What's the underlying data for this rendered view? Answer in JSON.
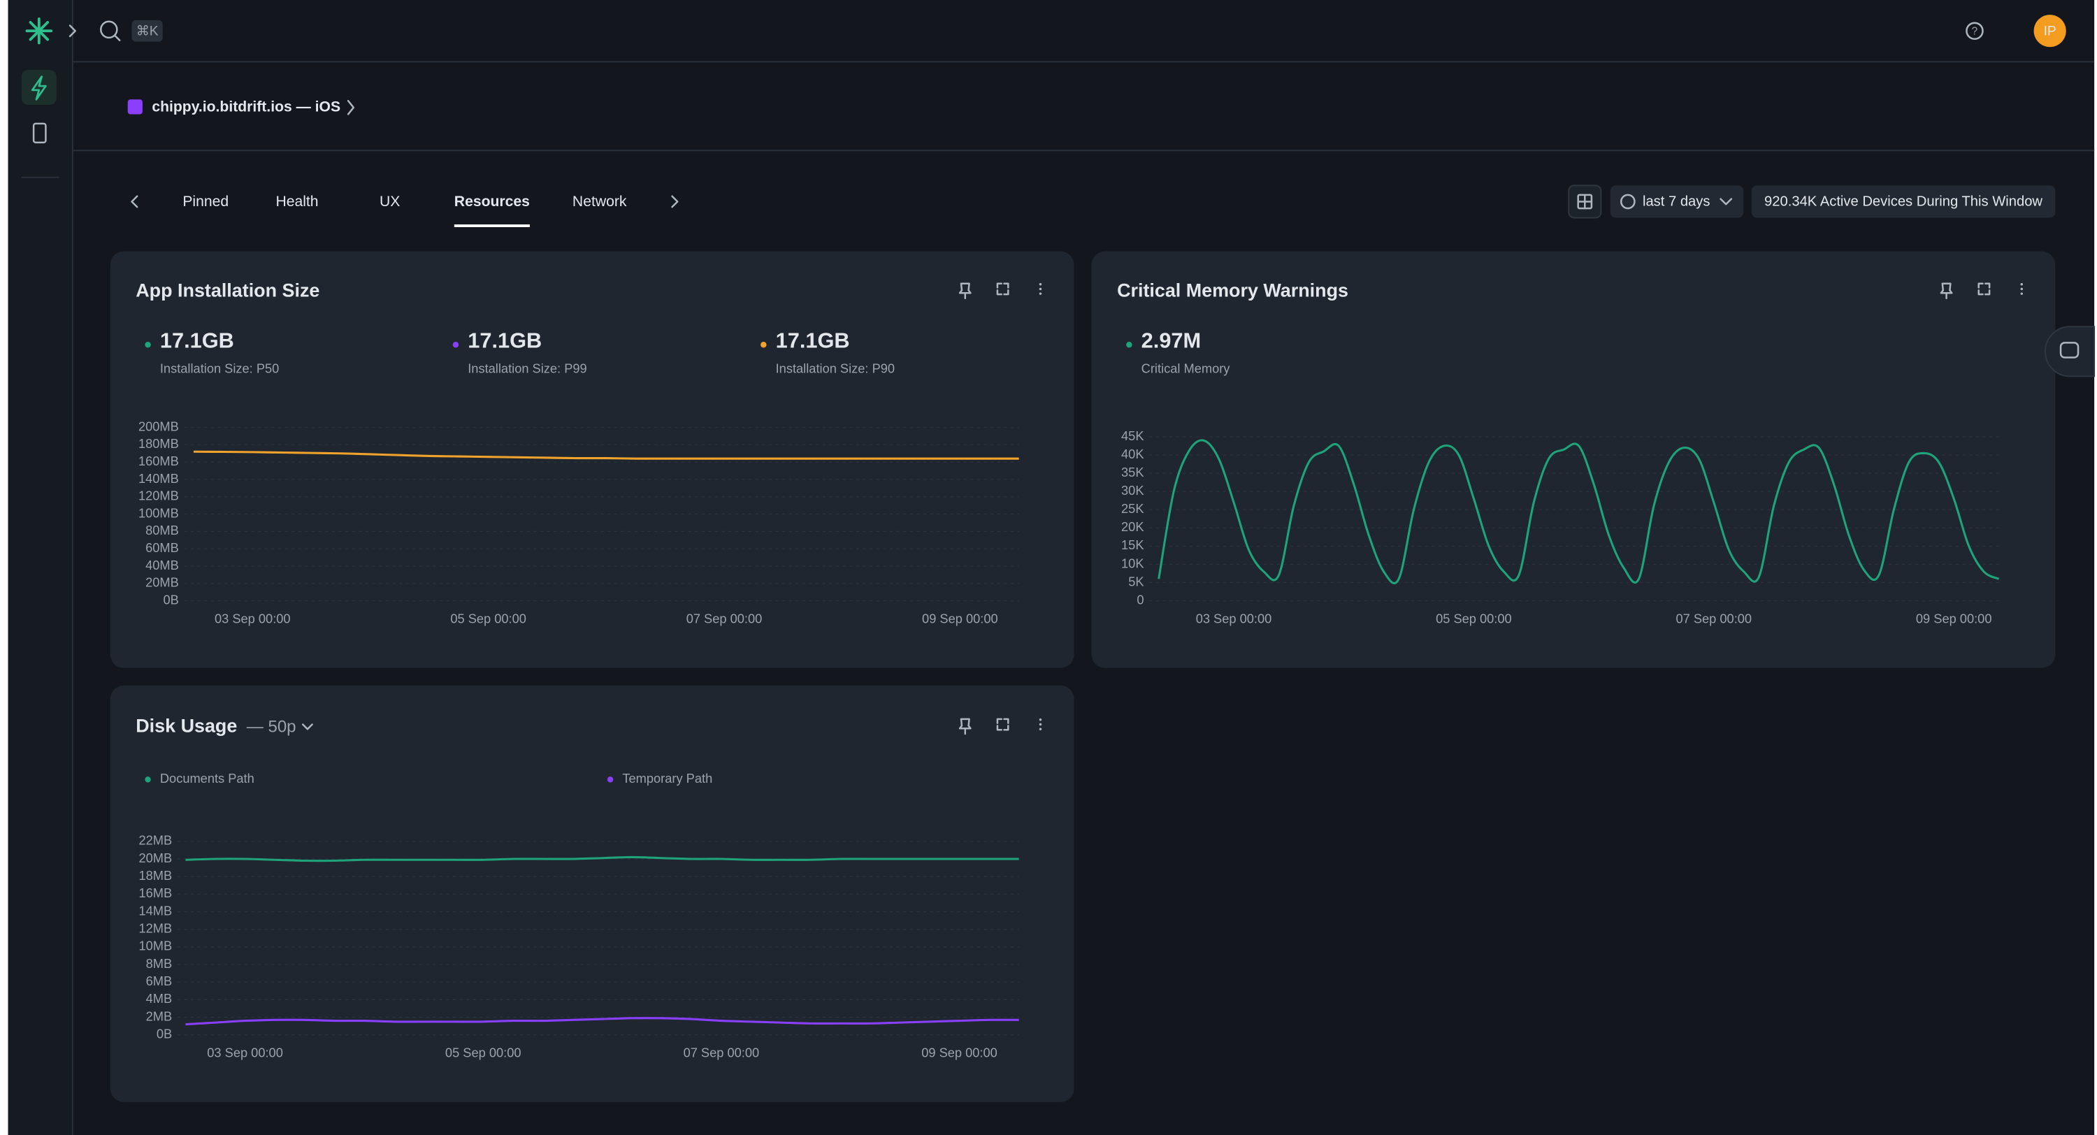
{
  "header": {
    "search_shortcut": "⌘K",
    "avatar": "IP"
  },
  "breadcrumb": "chippy.io.bitdrift.ios — iOS",
  "tabs": [
    "Pinned",
    "Health",
    "UX",
    "Resources",
    "Network"
  ],
  "active_tab": 3,
  "controls": {
    "time_range": "last 7 days",
    "active_devices": "920.34K Active Devices During This Window"
  },
  "chart_data": [
    {
      "type": "line",
      "title": "App Installation Size",
      "stats": [
        {
          "value": "17.1GB",
          "label": "Installation Size: P50",
          "color": "#1fa37a"
        },
        {
          "value": "17.1GB",
          "label": "Installation Size: P99",
          "color": "#8a3ffc"
        },
        {
          "value": "17.1GB",
          "label": "Installation Size: P90",
          "color": "#f0a32c"
        }
      ],
      "x": [
        "02 Sep 12:00",
        "02 Sep 18:00",
        "03 Sep 00:00",
        "03 Sep 06:00",
        "03 Sep 12:00",
        "03 Sep 18:00",
        "04 Sep 00:00",
        "04 Sep 06:00",
        "04 Sep 12:00",
        "04 Sep 18:00",
        "05 Sep 00:00",
        "05 Sep 06:00",
        "05 Sep 12:00",
        "05 Sep 18:00",
        "06 Sep 00:00",
        "06 Sep 06:00",
        "06 Sep 12:00",
        "06 Sep 18:00",
        "07 Sep 00:00",
        "07 Sep 06:00",
        "07 Sep 12:00",
        "07 Sep 18:00",
        "08 Sep 00:00",
        "08 Sep 06:00",
        "08 Sep 12:00",
        "08 Sep 18:00",
        "09 Sep 00:00",
        "09 Sep 06:00",
        "09 Sep 12:00"
      ],
      "xticks": [
        "03 Sep 00:00",
        "05 Sep 00:00",
        "07 Sep 00:00",
        "09 Sep 00:00"
      ],
      "series": [
        {
          "color": "#f0a32c",
          "values": [
            172,
            171.8,
            171.5,
            171,
            170.5,
            170,
            169,
            168,
            167,
            166.5,
            166,
            165.5,
            165,
            164.5,
            164.5,
            164,
            164,
            164,
            164,
            164,
            164,
            164,
            164,
            164,
            164,
            164,
            164,
            164,
            164
          ]
        }
      ],
      "ylim": [
        0,
        200
      ],
      "yticks": [
        {
          "value": 0,
          "label": "0B"
        },
        {
          "value": 20,
          "label": "20MB"
        },
        {
          "value": 40,
          "label": "40MB"
        },
        {
          "value": 60,
          "label": "60MB"
        },
        {
          "value": 80,
          "label": "80MB"
        },
        {
          "value": 100,
          "label": "100MB"
        },
        {
          "value": 120,
          "label": "120MB"
        },
        {
          "value": 140,
          "label": "140MB"
        },
        {
          "value": 160,
          "label": "160MB"
        },
        {
          "value": 180,
          "label": "180MB"
        },
        {
          "value": 200,
          "label": "200MB"
        }
      ],
      "grid": true
    },
    {
      "type": "line",
      "title": "Critical Memory Warnings",
      "stats": [
        {
          "value": "2.97M",
          "label": "Critical Memory",
          "color": "#1fa37a"
        }
      ],
      "x": [
        "02 Sep 09:00",
        "02 Sep 12:00",
        "02 Sep 15:00",
        "02 Sep 18:00",
        "02 Sep 21:00",
        "03 Sep 00:00",
        "03 Sep 03:00",
        "03 Sep 06:00",
        "03 Sep 09:00",
        "03 Sep 12:00",
        "03 Sep 15:00",
        "03 Sep 18:00",
        "03 Sep 21:00",
        "04 Sep 00:00",
        "04 Sep 03:00",
        "04 Sep 06:00",
        "04 Sep 09:00",
        "04 Sep 12:00",
        "04 Sep 15:00",
        "04 Sep 18:00",
        "04 Sep 21:00",
        "05 Sep 00:00",
        "05 Sep 03:00",
        "05 Sep 06:00",
        "05 Sep 09:00",
        "05 Sep 12:00",
        "05 Sep 15:00",
        "05 Sep 18:00",
        "05 Sep 21:00",
        "06 Sep 00:00",
        "06 Sep 03:00",
        "06 Sep 06:00",
        "06 Sep 09:00",
        "06 Sep 12:00",
        "06 Sep 15:00",
        "06 Sep 18:00",
        "06 Sep 21:00",
        "07 Sep 00:00",
        "07 Sep 03:00",
        "07 Sep 06:00",
        "07 Sep 09:00",
        "07 Sep 12:00",
        "07 Sep 15:00",
        "07 Sep 18:00",
        "07 Sep 21:00",
        "08 Sep 00:00",
        "08 Sep 03:00",
        "08 Sep 06:00",
        "08 Sep 09:00",
        "08 Sep 12:00",
        "08 Sep 15:00",
        "08 Sep 18:00",
        "08 Sep 21:00",
        "09 Sep 00:00",
        "09 Sep 03:00",
        "09 Sep 06:00",
        "09 Sep 09:00"
      ],
      "xticks": [
        "03 Sep 00:00",
        "05 Sep 00:00",
        "07 Sep 00:00",
        "09 Sep 00:00"
      ],
      "series": [
        {
          "color": "#1fa37a",
          "values": [
            6000,
            30000,
            41000,
            44000,
            39000,
            27000,
            14000,
            8000,
            7000,
            26000,
            38000,
            41000,
            42500,
            32000,
            18000,
            8000,
            6000,
            25000,
            38000,
            42500,
            40000,
            28000,
            15000,
            8000,
            7000,
            27000,
            39000,
            41500,
            42500,
            32000,
            18000,
            9000,
            6000,
            26000,
            38000,
            42000,
            39000,
            27000,
            14000,
            8000,
            6500,
            26000,
            38000,
            41500,
            42000,
            32000,
            18000,
            8500,
            7000,
            25000,
            38000,
            40500,
            38000,
            28000,
            15000,
            8000,
            6000
          ]
        }
      ],
      "ylim": [
        0,
        45000
      ],
      "yticks": [
        0,
        {
          "value": 5000,
          "label": "5K"
        },
        {
          "value": 10000,
          "label": "10K"
        },
        {
          "value": 15000,
          "label": "15K"
        },
        {
          "value": 20000,
          "label": "20K"
        },
        {
          "value": 25000,
          "label": "25K"
        },
        {
          "value": 30000,
          "label": "30K"
        },
        {
          "value": 35000,
          "label": "35K"
        },
        {
          "value": 40000,
          "label": "40K"
        },
        {
          "value": 45000,
          "label": "45K"
        }
      ],
      "grid": true
    },
    {
      "type": "line",
      "title": "Disk Usage",
      "subtitle": "— 50p",
      "x": [
        "02 Sep 12:00",
        "02 Sep 18:00",
        "03 Sep 00:00",
        "03 Sep 06:00",
        "03 Sep 12:00",
        "03 Sep 18:00",
        "04 Sep 00:00",
        "04 Sep 06:00",
        "04 Sep 12:00",
        "04 Sep 18:00",
        "05 Sep 00:00",
        "05 Sep 06:00",
        "05 Sep 12:00",
        "05 Sep 18:00",
        "06 Sep 00:00",
        "06 Sep 06:00",
        "06 Sep 12:00",
        "06 Sep 18:00",
        "07 Sep 00:00",
        "07 Sep 06:00",
        "07 Sep 12:00",
        "07 Sep 18:00",
        "08 Sep 00:00",
        "08 Sep 06:00",
        "08 Sep 12:00",
        "08 Sep 18:00",
        "09 Sep 00:00",
        "09 Sep 06:00",
        "09 Sep 12:00"
      ],
      "xticks": [
        "03 Sep 00:00",
        "05 Sep 00:00",
        "07 Sep 00:00",
        "09 Sep 00:00"
      ],
      "series": [
        {
          "name": "Documents Path",
          "color": "#1fa37a",
          "values": [
            19.9,
            20,
            20,
            19.9,
            19.8,
            19.8,
            19.9,
            19.9,
            19.9,
            19.9,
            19.9,
            20,
            20,
            20,
            20.1,
            20.2,
            20.1,
            20,
            20,
            19.9,
            19.9,
            19.9,
            20,
            20,
            20,
            20,
            20,
            20,
            20
          ]
        },
        {
          "name": "Temporary Path",
          "color": "#8a3ffc",
          "values": [
            1.2,
            1.4,
            1.6,
            1.7,
            1.7,
            1.6,
            1.6,
            1.5,
            1.5,
            1.5,
            1.5,
            1.6,
            1.6,
            1.7,
            1.8,
            1.9,
            1.9,
            1.8,
            1.6,
            1.5,
            1.4,
            1.3,
            1.3,
            1.3,
            1.4,
            1.5,
            1.6,
            1.7,
            1.7
          ]
        }
      ],
      "ylim": [
        0,
        22
      ],
      "yticks": [
        {
          "value": 0,
          "label": "0B"
        },
        {
          "value": 2,
          "label": "2MB"
        },
        {
          "value": 4,
          "label": "4MB"
        },
        {
          "value": 6,
          "label": "6MB"
        },
        {
          "value": 8,
          "label": "8MB"
        },
        {
          "value": 10,
          "label": "10MB"
        },
        {
          "value": 12,
          "label": "12MB"
        },
        {
          "value": 14,
          "label": "14MB"
        },
        {
          "value": 16,
          "label": "16MB"
        },
        {
          "value": 18,
          "label": "18MB"
        },
        {
          "value": 20,
          "label": "20MB"
        },
        {
          "value": 22,
          "label": "22MB"
        }
      ],
      "grid": true
    }
  ]
}
